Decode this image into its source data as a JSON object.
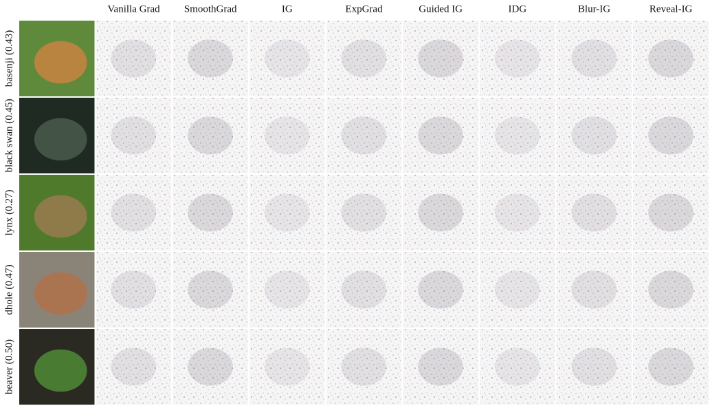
{
  "columns": [
    "Vanilla Grad",
    "SmoothGrad",
    "IG",
    "ExpGrad",
    "Guided IG",
    "IDG",
    "Blur-IG",
    "Reveal-IG"
  ],
  "rows": [
    {
      "label": "basenji (0.43)"
    },
    {
      "label": "black swan (0.45)"
    },
    {
      "label": "lynx (0.27)"
    },
    {
      "label": "dhole (0.47)"
    },
    {
      "label": "beaver (0.50)"
    }
  ]
}
